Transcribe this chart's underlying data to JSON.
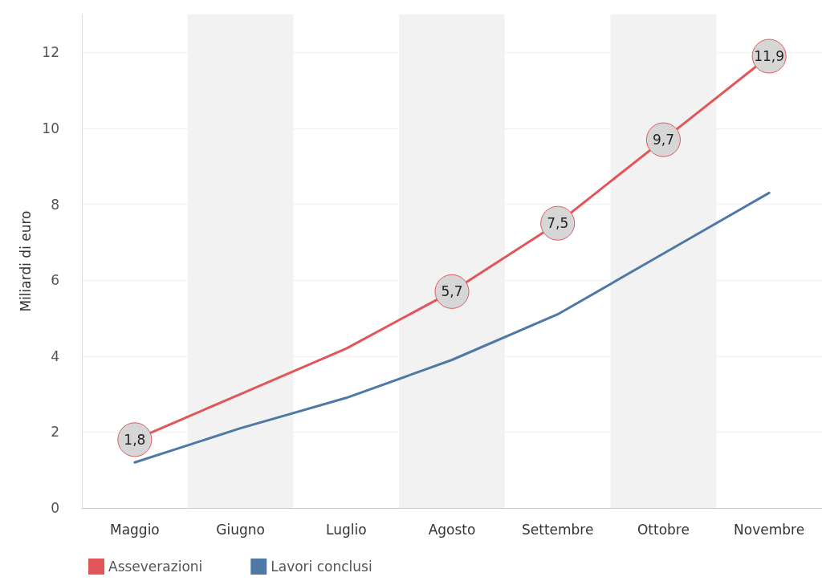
{
  "chart_data": {
    "type": "line",
    "ylabel": "Miliardi di euro",
    "categories": [
      "Maggio",
      "Giugno",
      "Luglio",
      "Agosto",
      "Settembre",
      "Ottobre",
      "Novembre"
    ],
    "series": [
      {
        "name": "Asseverazioni",
        "color": "#e15759",
        "values": [
          1.8,
          3.0,
          4.2,
          5.7,
          7.5,
          9.7,
          11.9
        ],
        "value_labels": [
          "1,8",
          null,
          null,
          "5,7",
          "7,5",
          "9,7",
          "11,9"
        ]
      },
      {
        "name": "Lavori conclusi",
        "color": "#4e79a7",
        "values": [
          1.2,
          2.1,
          2.9,
          3.9,
          5.1,
          6.7,
          8.3
        ]
      }
    ],
    "bands": [
      {
        "axis": "x",
        "from": "Giugno",
        "to": "Giugno",
        "color": "#f2f2f2"
      },
      {
        "axis": "x",
        "from": "Agosto",
        "to": "Agosto",
        "color": "#f2f2f2"
      },
      {
        "axis": "x",
        "from": "Ottobre",
        "to": "Ottobre",
        "color": "#f2f2f2"
      }
    ],
    "ylim": [
      0,
      13
    ],
    "yticks": [
      0,
      2,
      4,
      6,
      8,
      10,
      12
    ],
    "grid": "y",
    "legend": "bottom left",
    "line_style": "solid"
  }
}
